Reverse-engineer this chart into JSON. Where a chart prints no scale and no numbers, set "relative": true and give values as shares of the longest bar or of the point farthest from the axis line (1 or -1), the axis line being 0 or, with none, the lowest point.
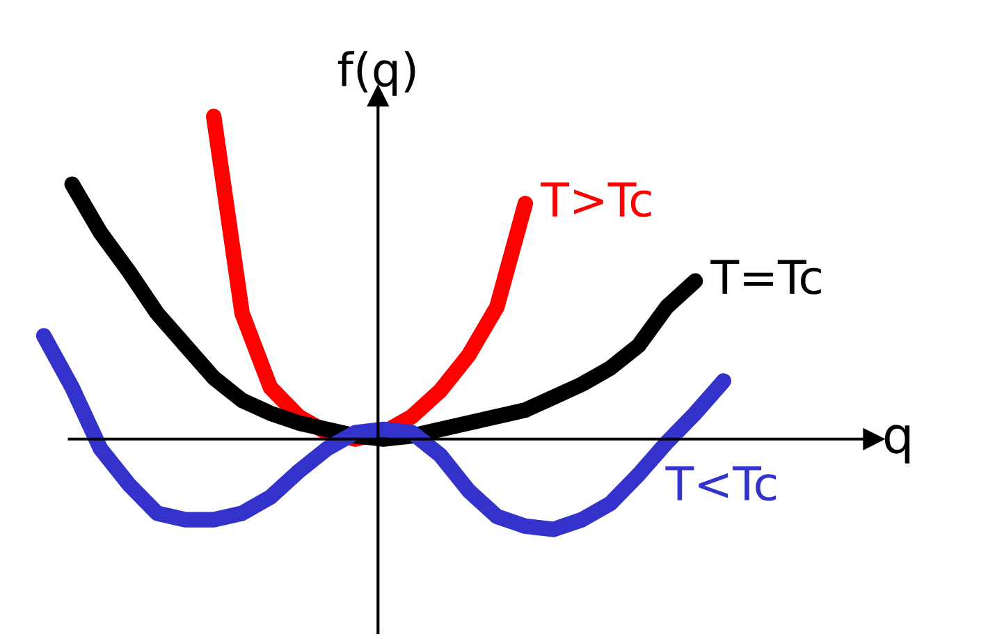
{
  "chart_data": {
    "type": "line",
    "relative": true,
    "xlabel": "q",
    "ylabel": "f(q)",
    "legend": false,
    "line_style": "solid",
    "categories": [
      null,
      null,
      null,
      null,
      null,
      null,
      null,
      null,
      null,
      null,
      null,
      null,
      null,
      null,
      null,
      null,
      null,
      null,
      null,
      null,
      null,
      null,
      null,
      null,
      null,
      null
    ],
    "series": [
      {
        "name": "T>Tc",
        "color": "#ff0000",
        "values": [
          null,
          null,
          null,
          null,
          null,
          null,
          1.0,
          0.39,
          0.16,
          0.07,
          0.02,
          0,
          0.02,
          0.07,
          0.15,
          0.26,
          0.41,
          0.73,
          null,
          null,
          null,
          null,
          null,
          null,
          null,
          null
        ]
      },
      {
        "name": "T=Tc",
        "color": "#000000",
        "values": [
          null,
          0.79,
          0.64,
          0.52,
          0.39,
          0.29,
          0.19,
          0.12,
          0.08,
          0.05,
          0.03,
          0.01,
          0,
          0.01,
          0.03,
          0.05,
          0.07,
          0.09,
          0.13,
          0.17,
          0.22,
          0.29,
          0.41,
          0.49,
          null,
          null
        ]
      },
      {
        "name": "T<Tc",
        "color": "#3333cc",
        "values": [
          0.32,
          0.16,
          -0.03,
          -0.14,
          -0.23,
          -0.25,
          -0.25,
          -0.23,
          -0.18,
          -0.1,
          -0.03,
          0.02,
          0.03,
          0.02,
          -0.05,
          -0.16,
          -0.24,
          -0.27,
          -0.28,
          -0.25,
          -0.2,
          -0.11,
          -0.01,
          0.08,
          0.18,
          null
        ]
      }
    ]
  }
}
